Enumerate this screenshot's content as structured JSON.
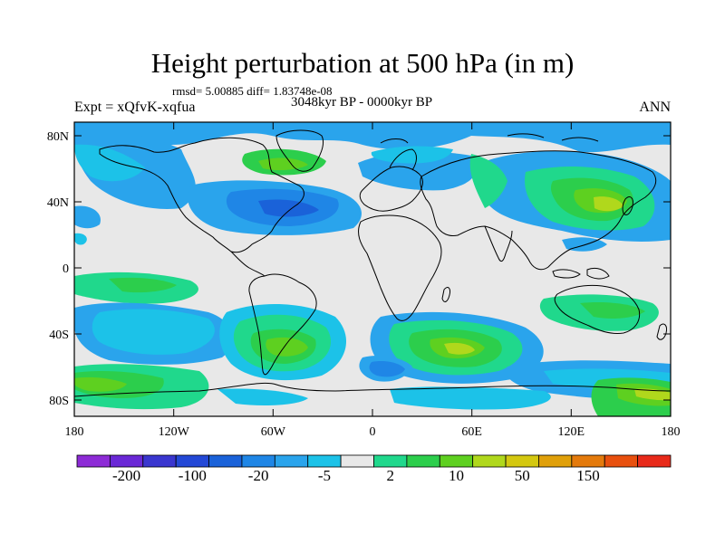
{
  "title": "Height perturbation at 500 hPa (in m)",
  "stats": "rmsd= 5.00885 diff= 1.83748e-08",
  "period": "3048kyr BP - 0000kyr BP",
  "experiment": "Expt = xQfvK-xqfua",
  "season": "ANN",
  "lat_ticks": [
    "80N",
    "40N",
    "0",
    "40S",
    "80S"
  ],
  "lon_ticks": [
    "180",
    "120W",
    "60W",
    "0",
    "60E",
    "120E",
    "180"
  ],
  "colorbar": {
    "colors": [
      "#8d2bd6",
      "#6a28d6",
      "#3a36cf",
      "#2348d6",
      "#1a62d9",
      "#1f86e6",
      "#2aa4ec",
      "#1cc2e8",
      "#e8e8e8",
      "#20d88c",
      "#2cce4c",
      "#5ed020",
      "#b0d81c",
      "#d4c810",
      "#e0a00a",
      "#e47a0c",
      "#e8500e",
      "#e82a1a"
    ],
    "labels": [
      "-200",
      "-100",
      "-20",
      "-5",
      "2",
      "10",
      "50",
      "150"
    ]
  },
  "colors": {
    "background_field": "#e8e8e8",
    "coast": "#000000"
  }
}
